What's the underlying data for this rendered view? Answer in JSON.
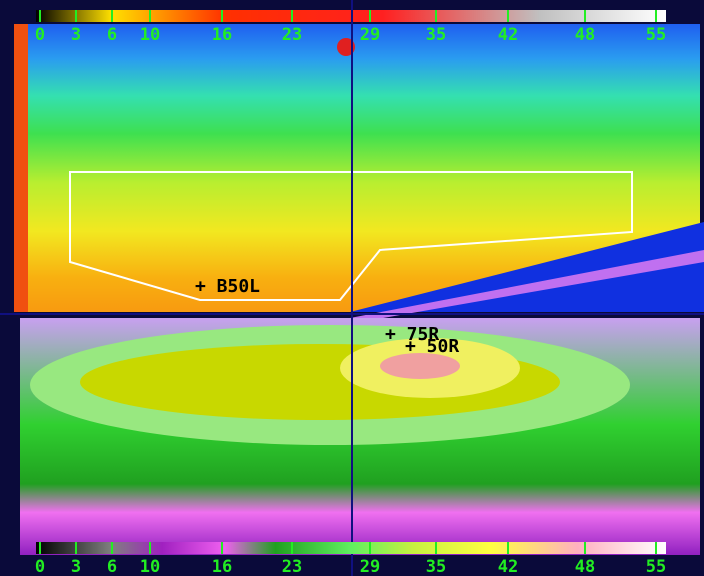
{
  "top_scale": {
    "labels": [
      "0",
      "3",
      "6",
      "10",
      "16",
      "23",
      "29",
      "35",
      "42",
      "48",
      "55"
    ]
  },
  "bottom_scale": {
    "labels": [
      "0",
      "3",
      "6",
      "10",
      "16",
      "23",
      "29",
      "35",
      "42",
      "48",
      "55"
    ]
  },
  "markers": [
    {
      "label": "+ B50L"
    },
    {
      "label": "+ 75R"
    },
    {
      "label": "+ 50R"
    }
  ]
}
